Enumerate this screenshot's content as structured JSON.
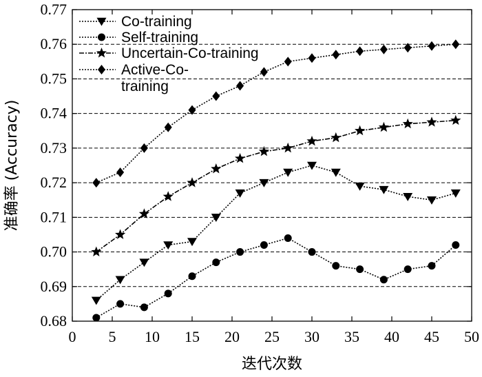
{
  "chart_data": {
    "type": "line",
    "title": "",
    "xlabel": "迭代次数",
    "ylabel": "准确率 (Accuracy)",
    "xlim": [
      0,
      50
    ],
    "ylim": [
      0.68,
      0.77
    ],
    "xticks": [
      0,
      5,
      10,
      15,
      20,
      25,
      30,
      35,
      40,
      45,
      50
    ],
    "yticks": [
      0.68,
      0.69,
      0.7,
      0.71,
      0.72,
      0.73,
      0.74,
      0.75,
      0.76,
      0.77
    ],
    "ytick_labels": [
      "0.68",
      "0.69",
      "0.70",
      "0.71",
      "0.72",
      "0.73",
      "0.74",
      "0.75",
      "0.76",
      "0.77"
    ],
    "grid": "horizontal-dashed",
    "legend_position": "top-left",
    "x": [
      3,
      6,
      9,
      12,
      15,
      18,
      21,
      24,
      27,
      30,
      33,
      36,
      39,
      42,
      45,
      48
    ],
    "series": [
      {
        "name": "Co-training",
        "marker": "triangle-down",
        "values": [
          0.686,
          0.692,
          0.697,
          0.702,
          0.703,
          0.71,
          0.717,
          0.72,
          0.723,
          0.725,
          0.723,
          0.719,
          0.718,
          0.716,
          0.715,
          0.717
        ]
      },
      {
        "name": "Self-training",
        "marker": "circle",
        "values": [
          0.681,
          0.685,
          0.684,
          0.688,
          0.693,
          0.697,
          0.7,
          0.702,
          0.704,
          0.7,
          0.696,
          0.695,
          0.692,
          0.695,
          0.696,
          0.702
        ]
      },
      {
        "name": "Uncertain-Co-training",
        "marker": "star",
        "values": [
          0.7,
          0.705,
          0.711,
          0.716,
          0.72,
          0.724,
          0.727,
          0.729,
          0.73,
          0.732,
          0.733,
          0.735,
          0.736,
          0.737,
          0.7375,
          0.738
        ]
      },
      {
        "name": "Active-Co-training",
        "legend_lines": [
          "Active-Co-",
          "training"
        ],
        "marker": "diamond",
        "values": [
          0.72,
          0.723,
          0.73,
          0.736,
          0.741,
          0.745,
          0.748,
          0.752,
          0.755,
          0.756,
          0.757,
          0.758,
          0.7585,
          0.759,
          0.7595,
          0.76
        ]
      }
    ]
  }
}
